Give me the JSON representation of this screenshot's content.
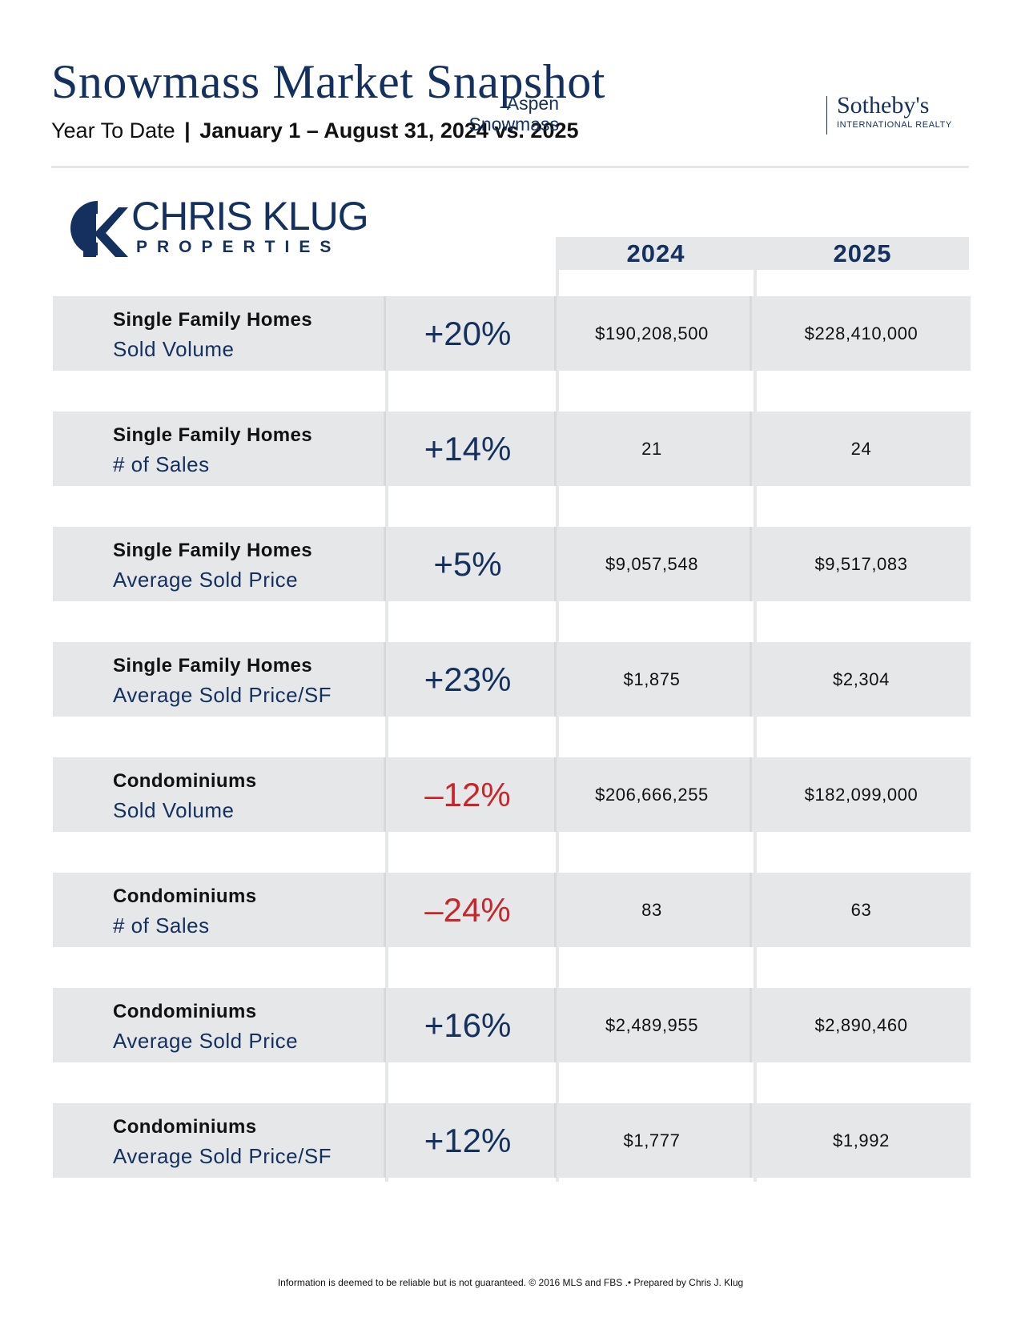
{
  "header": {
    "title": "Snowmass Market Snapshot",
    "subtitle_prefix": "Year To Date",
    "subtitle_sep": "|",
    "subtitle_dates": "January 1 – August 31, 2024 vs. 2025"
  },
  "brokerage": {
    "place_line1": "Aspen",
    "place_line2": "Snowmass",
    "brand": "Sotheby's",
    "brand_sub": "INTERNATIONAL REALTY"
  },
  "agent_logo": {
    "name": "CHRIS KLUG",
    "sub": "PROPERTIES"
  },
  "table": {
    "year_headers": [
      "2024",
      "2025"
    ],
    "rows": [
      {
        "category": "Single Family Homes",
        "metric": "Sold Volume",
        "change": "+20%",
        "direction": "up",
        "v2024": "$190,208,500",
        "v2025": "$228,410,000"
      },
      {
        "category": "Single Family Homes",
        "metric": "# of Sales",
        "change": "+14%",
        "direction": "up",
        "v2024": "21",
        "v2025": "24"
      },
      {
        "category": "Single Family Homes",
        "metric": "Average Sold Price",
        "change": "+5%",
        "direction": "up",
        "v2024": "$9,057,548",
        "v2025": "$9,517,083"
      },
      {
        "category": "Single Family Homes",
        "metric": "Average Sold Price/SF",
        "change": "+23%",
        "direction": "up",
        "v2024": "$1,875",
        "v2025": "$2,304"
      },
      {
        "category": "Condominiums",
        "metric": "Sold Volume",
        "change": "–12%",
        "direction": "down",
        "v2024": "$206,666,255",
        "v2025": "$182,099,000"
      },
      {
        "category": "Condominiums",
        "metric": "# of Sales",
        "change": "–24%",
        "direction": "down",
        "v2024": "83",
        "v2025": "63"
      },
      {
        "category": "Condominiums",
        "metric": "Average Sold Price",
        "change": "+16%",
        "direction": "up",
        "v2024": "$2,489,955",
        "v2025": "$2,890,460"
      },
      {
        "category": "Condominiums",
        "metric": "Average Sold Price/SF",
        "change": "+12%",
        "direction": "up",
        "v2024": "$1,777",
        "v2025": "$1,992"
      }
    ]
  },
  "colors": {
    "navy": "#14305e",
    "negative": "#c8262b",
    "panel": "#e6e7e8"
  },
  "footer": "Information is deemed to be reliable but is not guaranteed. © 2016 MLS and FBS .• Prepared by Chris J. Klug"
}
